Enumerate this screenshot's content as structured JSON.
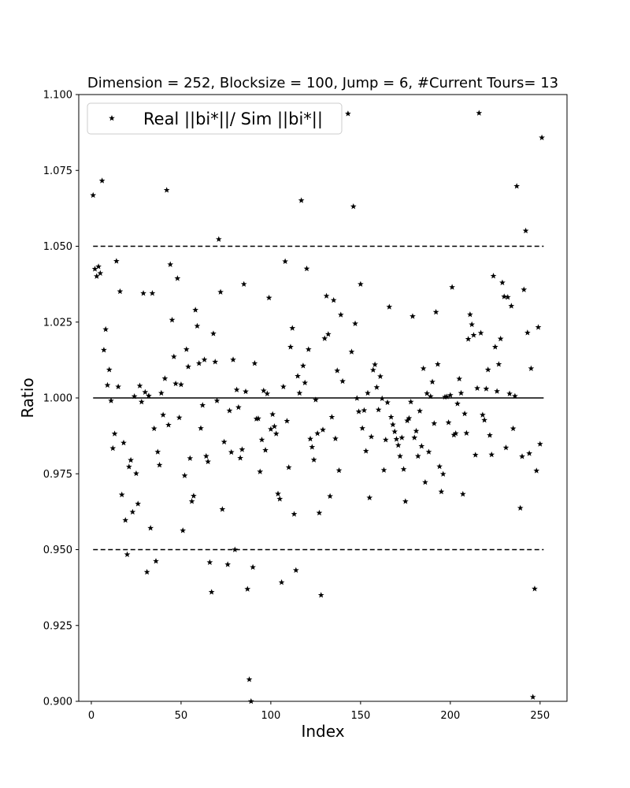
{
  "chart_data": {
    "type": "scatter",
    "title": "Dimension = 252, Blocksize = 100, Jump = 6, #Current Tours= 13",
    "xlabel": "Index",
    "ylabel": "Ratio",
    "xlim": [
      -7,
      265
    ],
    "ylim": [
      0.9,
      1.1
    ],
    "xticks": [
      0,
      50,
      100,
      150,
      200,
      250
    ],
    "xtick_labels": [
      "0",
      "50",
      "100",
      "150",
      "200",
      "250"
    ],
    "yticks": [
      0.9,
      0.925,
      0.95,
      0.975,
      1.0,
      1.025,
      1.05,
      1.075,
      1.1
    ],
    "ytick_labels": [
      "0.900",
      "0.925",
      "0.950",
      "0.975",
      "1.000",
      "1.025",
      "1.050",
      "1.075",
      "1.100"
    ],
    "grid": false,
    "legend": {
      "position": "top-left",
      "entries": [
        "Real ||bi*||/ Sim ||bi*||"
      ]
    },
    "marker": "star",
    "color": "#000000",
    "reference_lines": [
      {
        "y": 1.05,
        "style": "dashed",
        "x_range": [
          1,
          252
        ]
      },
      {
        "y": 1.0,
        "style": "solid",
        "x_range": [
          1,
          252
        ]
      },
      {
        "y": 0.95,
        "style": "dashed",
        "x_range": [
          1,
          252
        ]
      }
    ],
    "series": [
      {
        "name": "Real ||bi*||/ Sim ||bi*||",
        "points": [
          [
            1,
            1.0668
          ],
          [
            2,
            1.0425
          ],
          [
            3,
            1.0401
          ],
          [
            4,
            1.0433
          ],
          [
            5,
            1.0411
          ],
          [
            6,
            1.0716
          ],
          [
            7,
            1.0158
          ],
          [
            8,
            1.0226
          ],
          [
            9,
            1.0042
          ],
          [
            10,
            1.0093
          ],
          [
            11,
            0.9991
          ],
          [
            12,
            0.9834
          ],
          [
            13,
            0.9882
          ],
          [
            14,
            1.0451
          ],
          [
            15,
            1.0037
          ],
          [
            16,
            1.0351
          ],
          [
            17,
            0.9681
          ],
          [
            18,
            0.9852
          ],
          [
            19,
            0.9597
          ],
          [
            20,
            0.9484
          ],
          [
            21,
            0.9773
          ],
          [
            22,
            0.9795
          ],
          [
            23,
            0.9624
          ],
          [
            24,
            1.0005
          ],
          [
            25,
            0.9751
          ],
          [
            26,
            0.9651
          ],
          [
            27,
            1.004
          ],
          [
            28,
            0.9987
          ],
          [
            29,
            1.0345
          ],
          [
            30,
            1.0019
          ],
          [
            31,
            0.9426
          ],
          [
            32,
            1.0007
          ],
          [
            33,
            0.9571
          ],
          [
            34,
            1.0345
          ],
          [
            35,
            0.9899
          ],
          [
            36,
            0.9462
          ],
          [
            37,
            0.9822
          ],
          [
            38,
            0.9779
          ],
          [
            39,
            1.0016
          ],
          [
            40,
            0.9944
          ],
          [
            41,
            1.0064
          ],
          [
            42,
            1.0685
          ],
          [
            43,
            0.9911
          ],
          [
            44,
            1.044
          ],
          [
            45,
            1.0257
          ],
          [
            46,
            1.0136
          ],
          [
            47,
            1.0047
          ],
          [
            48,
            1.0394
          ],
          [
            49,
            0.9935
          ],
          [
            50,
            1.0044
          ],
          [
            51,
            0.9563
          ],
          [
            52,
            0.9744
          ],
          [
            53,
            1.016
          ],
          [
            54,
            1.0103
          ],
          [
            55,
            0.9801
          ],
          [
            56,
            0.9659
          ],
          [
            57,
            0.9677
          ],
          [
            58,
            1.029
          ],
          [
            59,
            1.0237
          ],
          [
            60,
            1.0114
          ],
          [
            61,
            0.99
          ],
          [
            62,
            0.9976
          ],
          [
            63,
            1.0126
          ],
          [
            64,
            0.9808
          ],
          [
            65,
            0.979
          ],
          [
            66,
            0.9458
          ],
          [
            67,
            0.936
          ],
          [
            68,
            1.0212
          ],
          [
            69,
            1.0119
          ],
          [
            70,
            0.9991
          ],
          [
            71,
            1.0523
          ],
          [
            72,
            1.0349
          ],
          [
            73,
            0.9633
          ],
          [
            74,
            0.9855
          ],
          [
            76,
            0.9451
          ],
          [
            77,
            0.9958
          ],
          [
            78,
            0.9821
          ],
          [
            79,
            1.0126
          ],
          [
            80,
            0.95
          ],
          [
            81,
            1.0027
          ],
          [
            82,
            0.9969
          ],
          [
            83,
            0.9802
          ],
          [
            84,
            0.983
          ],
          [
            85,
            1.0375
          ],
          [
            86,
            1.0021
          ],
          [
            87,
            0.937
          ],
          [
            88,
            0.9072
          ],
          [
            89,
            0.9
          ],
          [
            90,
            0.9442
          ],
          [
            91,
            1.0114
          ],
          [
            92,
            0.9931
          ],
          [
            93,
            0.9932
          ],
          [
            94,
            0.9757
          ],
          [
            95,
            0.9862
          ],
          [
            96,
            1.0024
          ],
          [
            97,
            0.9828
          ],
          [
            98,
            1.0014
          ],
          [
            99,
            1.033
          ],
          [
            100,
            0.9897
          ],
          [
            101,
            0.9946
          ],
          [
            102,
            0.9906
          ],
          [
            103,
            0.9882
          ],
          [
            104,
            0.9684
          ],
          [
            105,
            0.9667
          ],
          [
            106,
            0.9392
          ],
          [
            107,
            1.0037
          ],
          [
            108,
            1.045
          ],
          [
            109,
            0.9924
          ],
          [
            110,
            0.9771
          ],
          [
            111,
            1.0168
          ],
          [
            112,
            1.023
          ],
          [
            113,
            0.9617
          ],
          [
            114,
            0.9432
          ],
          [
            115,
            1.0072
          ],
          [
            116,
            1.0016
          ],
          [
            117,
            1.0651
          ],
          [
            118,
            1.0106
          ],
          [
            119,
            1.005
          ],
          [
            120,
            1.0426
          ],
          [
            121,
            1.016
          ],
          [
            122,
            0.9865
          ],
          [
            123,
            0.9838
          ],
          [
            124,
            0.9796
          ],
          [
            125,
            0.9994
          ],
          [
            126,
            0.9883
          ],
          [
            127,
            0.9621
          ],
          [
            128,
            0.935
          ],
          [
            129,
            0.9895
          ],
          [
            130,
            1.0196
          ],
          [
            131,
            1.0336
          ],
          [
            132,
            1.021
          ],
          [
            133,
            0.9676
          ],
          [
            134,
            0.9937
          ],
          [
            135,
            1.0322
          ],
          [
            136,
            0.9866
          ],
          [
            137,
            1.009
          ],
          [
            138,
            0.9761
          ],
          [
            139,
            1.0274
          ],
          [
            140,
            1.0055
          ],
          [
            143,
            1.0937
          ],
          [
            145,
            1.0152
          ],
          [
            146,
            1.0631
          ],
          [
            147,
            1.0245
          ],
          [
            148,
            0.9999
          ],
          [
            149,
            0.9955
          ],
          [
            150,
            1.0375
          ],
          [
            151,
            0.99
          ],
          [
            152,
            0.9959
          ],
          [
            153,
            0.9825
          ],
          [
            154,
            1.0016
          ],
          [
            155,
            0.9671
          ],
          [
            156,
            0.9872
          ],
          [
            157,
            1.0092
          ],
          [
            158,
            1.011
          ],
          [
            159,
            1.0035
          ],
          [
            160,
            0.9961
          ],
          [
            161,
            1.0071
          ],
          [
            162,
            0.9998
          ],
          [
            163,
            0.9762
          ],
          [
            164,
            0.9862
          ],
          [
            165,
            0.9985
          ],
          [
            166,
            1.03
          ],
          [
            167,
            0.9937
          ],
          [
            168,
            0.9912
          ],
          [
            169,
            0.9889
          ],
          [
            170,
            0.9864
          ],
          [
            171,
            0.9844
          ],
          [
            172,
            0.9808
          ],
          [
            173,
            0.9869
          ],
          [
            174,
            0.9765
          ],
          [
            175,
            0.9659
          ],
          [
            176,
            0.9925
          ],
          [
            177,
            0.9933
          ],
          [
            178,
            0.9987
          ],
          [
            179,
            1.0269
          ],
          [
            180,
            0.9869
          ],
          [
            181,
            0.9891
          ],
          [
            182,
            0.9808
          ],
          [
            183,
            0.9957
          ],
          [
            184,
            0.9841
          ],
          [
            185,
            1.0097
          ],
          [
            186,
            0.9722
          ],
          [
            187,
            1.0015
          ],
          [
            188,
            0.9822
          ],
          [
            189,
            1.0005
          ],
          [
            190,
            1.0053
          ],
          [
            191,
            0.9916
          ],
          [
            192,
            1.0283
          ],
          [
            193,
            1.0111
          ],
          [
            194,
            0.9774
          ],
          [
            195,
            0.9691
          ],
          [
            196,
            0.9749
          ],
          [
            197,
            1.0003
          ],
          [
            198,
            1.0004
          ],
          [
            199,
            0.9919
          ],
          [
            200,
            1.0009
          ],
          [
            201,
            1.0365
          ],
          [
            202,
            0.9878
          ],
          [
            203,
            0.9883
          ],
          [
            204,
            0.9981
          ],
          [
            205,
            1.0063
          ],
          [
            206,
            1.0016
          ],
          [
            207,
            0.9683
          ],
          [
            208,
            0.9948
          ],
          [
            209,
            0.9884
          ],
          [
            210,
            1.0194
          ],
          [
            211,
            1.0275
          ],
          [
            212,
            1.0242
          ],
          [
            213,
            1.0207
          ],
          [
            214,
            0.9812
          ],
          [
            215,
            1.0032
          ],
          [
            216,
            1.0939
          ],
          [
            217,
            1.0214
          ],
          [
            218,
            0.9944
          ],
          [
            219,
            0.9927
          ],
          [
            220,
            1.003
          ],
          [
            221,
            1.0093
          ],
          [
            222,
            0.9877
          ],
          [
            223,
            0.9813
          ],
          [
            224,
            1.0402
          ],
          [
            225,
            1.0168
          ],
          [
            226,
            1.0022
          ],
          [
            227,
            1.0111
          ],
          [
            228,
            1.0195
          ],
          [
            229,
            1.038
          ],
          [
            230,
            1.0334
          ],
          [
            231,
            0.9836
          ],
          [
            232,
            1.0332
          ],
          [
            233,
            1.0014
          ],
          [
            234,
            1.0303
          ],
          [
            235,
            0.9899
          ],
          [
            236,
            1.0006
          ],
          [
            237,
            1.0698
          ],
          [
            239,
            0.9637
          ],
          [
            240,
            0.9807
          ],
          [
            241,
            1.0357
          ],
          [
            242,
            1.0551
          ],
          [
            243,
            1.0215
          ],
          [
            244,
            0.9817
          ],
          [
            245,
            1.0097
          ],
          [
            246,
            0.9014
          ],
          [
            247,
            0.9371
          ],
          [
            248,
            0.976
          ],
          [
            249,
            1.0233
          ],
          [
            250,
            0.9848
          ],
          [
            251,
            1.0858
          ]
        ]
      }
    ]
  }
}
